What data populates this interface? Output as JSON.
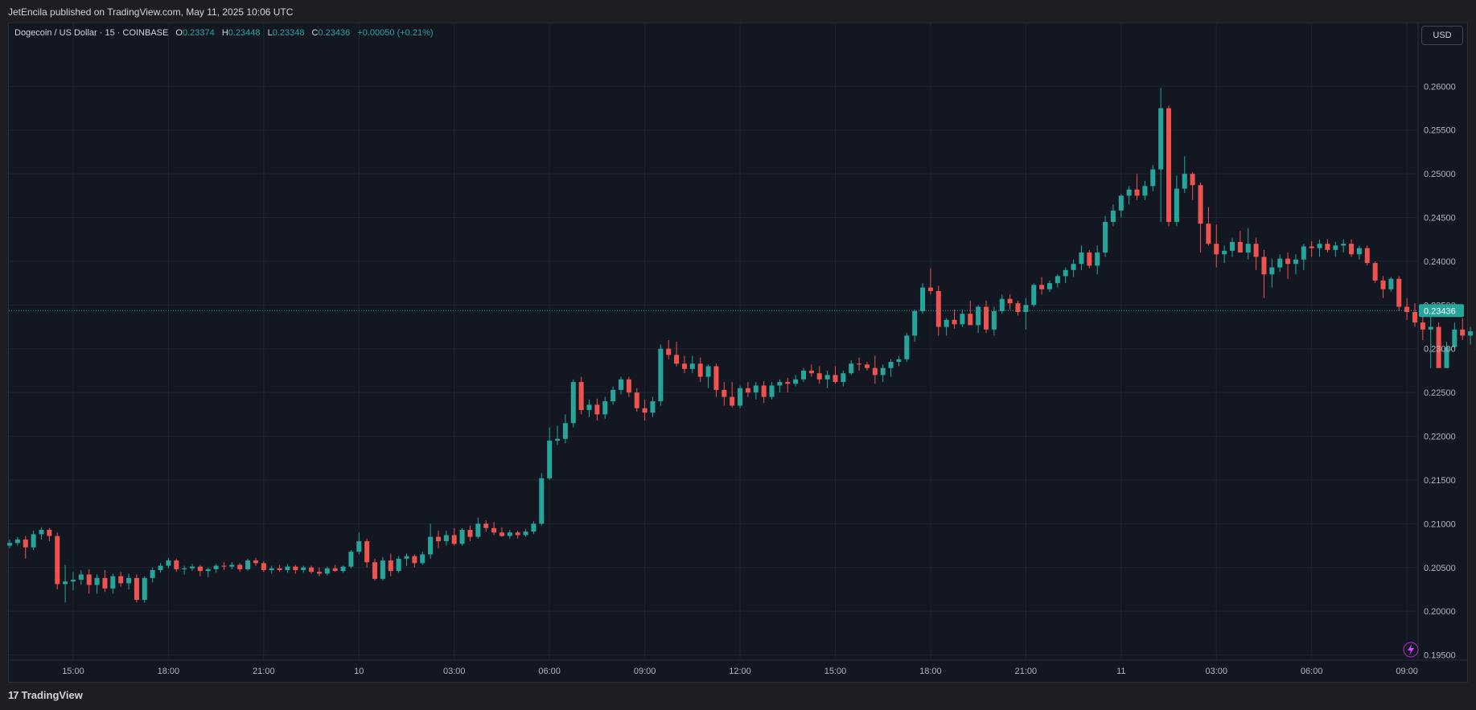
{
  "header": {
    "published": "JetEncila published on TradingView.com, May 11, 2025 10:06 UTC"
  },
  "legend": {
    "symbol": "Dogecoin / US Dollar · 15 · COINBASE",
    "o_label": "O",
    "o_value": "0.23374",
    "h_label": "H",
    "h_value": "0.23448",
    "l_label": "L",
    "l_value": "0.23348",
    "c_label": "C",
    "c_value": "0.23436",
    "change": "+0.00050 (+0.21%)"
  },
  "currency_button": "USD",
  "last_price_label": "0.23436",
  "footer": {
    "logo_mark": "17",
    "logo_text": "TradingView"
  },
  "colors": {
    "up": "#26a69a",
    "down": "#ef5350",
    "background": "#131722",
    "grid": "#1f2430"
  },
  "chart_data": {
    "type": "candlestick",
    "symbol": "Dogecoin / US Dollar",
    "interval": "15",
    "exchange": "COINBASE",
    "y_ticks": [
      "0.19500",
      "0.20000",
      "0.20500",
      "0.21000",
      "0.21500",
      "0.22000",
      "0.22500",
      "0.23000",
      "0.23500",
      "0.24000",
      "0.24500",
      "0.25000",
      "0.25500",
      "0.26000"
    ],
    "ylim": [
      0.1945,
      0.2672
    ],
    "x_ticks": [
      "15:00",
      "18:00",
      "21:00",
      "10",
      "03:00",
      "06:00",
      "09:00",
      "12:00",
      "15:00",
      "18:00",
      "21:00",
      "11",
      "03:00",
      "06:00",
      "09:00"
    ],
    "x_tick_index": [
      8,
      20,
      32,
      44,
      56,
      68,
      80,
      92,
      104,
      116,
      128,
      140,
      152,
      164,
      176
    ],
    "last_price": 0.23436,
    "candles": [
      [
        0.2075,
        0.2082,
        0.2072,
        0.2078
      ],
      [
        0.2078,
        0.2085,
        0.2075,
        0.2082
      ],
      [
        0.2082,
        0.2086,
        0.206,
        0.2073
      ],
      [
        0.2073,
        0.2092,
        0.207,
        0.2088
      ],
      [
        0.2088,
        0.2096,
        0.2082,
        0.2093
      ],
      [
        0.2093,
        0.2095,
        0.208,
        0.2086
      ],
      [
        0.2086,
        0.209,
        0.2025,
        0.2031
      ],
      [
        0.2031,
        0.2053,
        0.201,
        0.2034
      ],
      [
        0.2034,
        0.2045,
        0.2024,
        0.2036
      ],
      [
        0.2036,
        0.2047,
        0.203,
        0.2042
      ],
      [
        0.2042,
        0.2048,
        0.202,
        0.203
      ],
      [
        0.203,
        0.2042,
        0.202,
        0.2038
      ],
      [
        0.2038,
        0.2047,
        0.2022,
        0.2026
      ],
      [
        0.2026,
        0.2043,
        0.202,
        0.204
      ],
      [
        0.204,
        0.2045,
        0.2028,
        0.2032
      ],
      [
        0.2032,
        0.2043,
        0.2025,
        0.2038
      ],
      [
        0.2038,
        0.2042,
        0.201,
        0.2013
      ],
      [
        0.2013,
        0.204,
        0.201,
        0.2038
      ],
      [
        0.2038,
        0.205,
        0.2033,
        0.2047
      ],
      [
        0.2047,
        0.2055,
        0.2044,
        0.2052
      ],
      [
        0.2052,
        0.2061,
        0.2049,
        0.2058
      ],
      [
        0.2058,
        0.206,
        0.2045,
        0.2048
      ],
      [
        0.2048,
        0.2052,
        0.2042,
        0.2049
      ],
      [
        0.2049,
        0.2054,
        0.2046,
        0.2051
      ],
      [
        0.2051,
        0.2053,
        0.204,
        0.2046
      ],
      [
        0.2046,
        0.205,
        0.2039,
        0.2048
      ],
      [
        0.2048,
        0.2054,
        0.2044,
        0.2052
      ],
      [
        0.2052,
        0.2056,
        0.2047,
        0.2051
      ],
      [
        0.2051,
        0.2056,
        0.2048,
        0.2053
      ],
      [
        0.2053,
        0.2055,
        0.2045,
        0.2048
      ],
      [
        0.2048,
        0.206,
        0.2046,
        0.2058
      ],
      [
        0.2058,
        0.2061,
        0.2052,
        0.2055
      ],
      [
        0.2055,
        0.2057,
        0.2045,
        0.2047
      ],
      [
        0.2047,
        0.2052,
        0.2043,
        0.2049
      ],
      [
        0.2049,
        0.2053,
        0.2045,
        0.2047
      ],
      [
        0.2047,
        0.2054,
        0.2044,
        0.2051
      ],
      [
        0.2051,
        0.2053,
        0.2043,
        0.2047
      ],
      [
        0.2047,
        0.2052,
        0.2044,
        0.205
      ],
      [
        0.205,
        0.2052,
        0.2043,
        0.2045
      ],
      [
        0.2045,
        0.205,
        0.204,
        0.2043
      ],
      [
        0.2043,
        0.2051,
        0.2041,
        0.2049
      ],
      [
        0.2049,
        0.2053,
        0.2045,
        0.2046
      ],
      [
        0.2046,
        0.2052,
        0.2044,
        0.2051
      ],
      [
        0.2051,
        0.207,
        0.2049,
        0.2068
      ],
      [
        0.2068,
        0.209,
        0.2065,
        0.208
      ],
      [
        0.208,
        0.2083,
        0.205,
        0.2056
      ],
      [
        0.2056,
        0.206,
        0.2035,
        0.2037
      ],
      [
        0.2037,
        0.2062,
        0.2035,
        0.2058
      ],
      [
        0.2058,
        0.2066,
        0.204,
        0.2046
      ],
      [
        0.2046,
        0.2063,
        0.2044,
        0.206
      ],
      [
        0.206,
        0.2066,
        0.2052,
        0.2063
      ],
      [
        0.2063,
        0.2065,
        0.205,
        0.2055
      ],
      [
        0.2055,
        0.2068,
        0.2053,
        0.2065
      ],
      [
        0.2065,
        0.21,
        0.206,
        0.2085
      ],
      [
        0.2085,
        0.2092,
        0.2072,
        0.208
      ],
      [
        0.208,
        0.2092,
        0.2075,
        0.2087
      ],
      [
        0.2087,
        0.2095,
        0.2075,
        0.2077
      ],
      [
        0.2077,
        0.2095,
        0.2075,
        0.2093
      ],
      [
        0.2093,
        0.2098,
        0.208,
        0.2085
      ],
      [
        0.2085,
        0.2107,
        0.2083,
        0.21
      ],
      [
        0.21,
        0.2104,
        0.2091,
        0.2095
      ],
      [
        0.2095,
        0.2102,
        0.2087,
        0.209
      ],
      [
        0.209,
        0.2096,
        0.2085,
        0.2086
      ],
      [
        0.2086,
        0.2093,
        0.2083,
        0.209
      ],
      [
        0.209,
        0.2092,
        0.2083,
        0.2087
      ],
      [
        0.2087,
        0.2094,
        0.2085,
        0.2091
      ],
      [
        0.2091,
        0.2103,
        0.2088,
        0.21
      ],
      [
        0.21,
        0.2158,
        0.2098,
        0.2152
      ],
      [
        0.2152,
        0.221,
        0.215,
        0.2195
      ],
      [
        0.2195,
        0.2212,
        0.219,
        0.2197
      ],
      [
        0.2197,
        0.2225,
        0.2192,
        0.2215
      ],
      [
        0.2215,
        0.2265,
        0.221,
        0.2262
      ],
      [
        0.2262,
        0.2268,
        0.2225,
        0.223
      ],
      [
        0.223,
        0.2242,
        0.2222,
        0.2236
      ],
      [
        0.2236,
        0.2243,
        0.2218,
        0.2225
      ],
      [
        0.2225,
        0.2245,
        0.222,
        0.224
      ],
      [
        0.224,
        0.2257,
        0.2236,
        0.2253
      ],
      [
        0.2253,
        0.2268,
        0.2248,
        0.2265
      ],
      [
        0.2265,
        0.2268,
        0.2245,
        0.225
      ],
      [
        0.225,
        0.2255,
        0.2228,
        0.2232
      ],
      [
        0.2232,
        0.2242,
        0.2218,
        0.2227
      ],
      [
        0.2227,
        0.2245,
        0.2222,
        0.224
      ],
      [
        0.224,
        0.2305,
        0.2235,
        0.23
      ],
      [
        0.23,
        0.231,
        0.2288,
        0.2293
      ],
      [
        0.2293,
        0.2308,
        0.228,
        0.2283
      ],
      [
        0.2283,
        0.2292,
        0.2272,
        0.2277
      ],
      [
        0.2277,
        0.2292,
        0.2272,
        0.2283
      ],
      [
        0.2283,
        0.229,
        0.2262,
        0.2268
      ],
      [
        0.2268,
        0.2282,
        0.2255,
        0.228
      ],
      [
        0.228,
        0.2283,
        0.2245,
        0.2253
      ],
      [
        0.2253,
        0.2262,
        0.2235,
        0.2245
      ],
      [
        0.2245,
        0.2262,
        0.2233,
        0.2235
      ],
      [
        0.2235,
        0.2258,
        0.2232,
        0.2255
      ],
      [
        0.2255,
        0.2262,
        0.2245,
        0.225
      ],
      [
        0.225,
        0.2262,
        0.2242,
        0.2258
      ],
      [
        0.2258,
        0.2263,
        0.2238,
        0.2245
      ],
      [
        0.2245,
        0.2262,
        0.2242,
        0.2258
      ],
      [
        0.2258,
        0.2265,
        0.225,
        0.2262
      ],
      [
        0.2262,
        0.2267,
        0.225,
        0.226
      ],
      [
        0.226,
        0.227,
        0.2257,
        0.2265
      ],
      [
        0.2265,
        0.2278,
        0.2262,
        0.2275
      ],
      [
        0.2275,
        0.2282,
        0.2268,
        0.2272
      ],
      [
        0.2272,
        0.228,
        0.226,
        0.2265
      ],
      [
        0.2265,
        0.2275,
        0.2255,
        0.227
      ],
      [
        0.227,
        0.228,
        0.226,
        0.2262
      ],
      [
        0.2262,
        0.2275,
        0.2257,
        0.2272
      ],
      [
        0.2272,
        0.2287,
        0.227,
        0.2283
      ],
      [
        0.2283,
        0.229,
        0.2275,
        0.2282
      ],
      [
        0.2282,
        0.2285,
        0.2275,
        0.2278
      ],
      [
        0.2278,
        0.2292,
        0.226,
        0.227
      ],
      [
        0.227,
        0.2282,
        0.2262,
        0.2278
      ],
      [
        0.2278,
        0.2288,
        0.2268,
        0.2285
      ],
      [
        0.2285,
        0.2292,
        0.228,
        0.2288
      ],
      [
        0.2288,
        0.2318,
        0.2285,
        0.2315
      ],
      [
        0.2315,
        0.2345,
        0.2308,
        0.2343
      ],
      [
        0.2343,
        0.2375,
        0.234,
        0.237
      ],
      [
        0.237,
        0.2392,
        0.2362,
        0.2366
      ],
      [
        0.2366,
        0.2372,
        0.2315,
        0.2325
      ],
      [
        0.2325,
        0.2335,
        0.2315,
        0.2333
      ],
      [
        0.2333,
        0.2345,
        0.2323,
        0.2328
      ],
      [
        0.2328,
        0.2345,
        0.2325,
        0.234
      ],
      [
        0.234,
        0.2355,
        0.233,
        0.2327
      ],
      [
        0.2327,
        0.235,
        0.2318,
        0.2348
      ],
      [
        0.2348,
        0.2355,
        0.2318,
        0.2322
      ],
      [
        0.2322,
        0.2348,
        0.2315,
        0.2343
      ],
      [
        0.2343,
        0.2362,
        0.234,
        0.2357
      ],
      [
        0.2357,
        0.2362,
        0.2345,
        0.2352
      ],
      [
        0.2352,
        0.2355,
        0.2338,
        0.2342
      ],
      [
        0.2342,
        0.2358,
        0.2322,
        0.235
      ],
      [
        0.235,
        0.2375,
        0.2348,
        0.2373
      ],
      [
        0.2373,
        0.2382,
        0.2362,
        0.2368
      ],
      [
        0.2368,
        0.2378,
        0.2365,
        0.2375
      ],
      [
        0.2375,
        0.2385,
        0.237,
        0.2383
      ],
      [
        0.2383,
        0.2393,
        0.2375,
        0.239
      ],
      [
        0.239,
        0.2402,
        0.2382,
        0.2397
      ],
      [
        0.2397,
        0.2418,
        0.239,
        0.241
      ],
      [
        0.241,
        0.2413,
        0.2392,
        0.2395
      ],
      [
        0.2395,
        0.2418,
        0.2385,
        0.241
      ],
      [
        0.241,
        0.2452,
        0.2405,
        0.2445
      ],
      [
        0.2445,
        0.2465,
        0.244,
        0.2458
      ],
      [
        0.2458,
        0.2477,
        0.245,
        0.2475
      ],
      [
        0.2475,
        0.2486,
        0.2465,
        0.2482
      ],
      [
        0.2482,
        0.25,
        0.247,
        0.2475
      ],
      [
        0.2475,
        0.2492,
        0.247,
        0.2486
      ],
      [
        0.2486,
        0.251,
        0.248,
        0.2505
      ],
      [
        0.2505,
        0.2598,
        0.2445,
        0.2575
      ],
      [
        0.2575,
        0.2578,
        0.244,
        0.2445
      ],
      [
        0.2445,
        0.2498,
        0.244,
        0.2483
      ],
      [
        0.2483,
        0.252,
        0.2478,
        0.25
      ],
      [
        0.25,
        0.2502,
        0.247,
        0.2487
      ],
      [
        0.2487,
        0.249,
        0.241,
        0.2443
      ],
      [
        0.2443,
        0.2462,
        0.2418,
        0.242
      ],
      [
        0.242,
        0.2442,
        0.2393,
        0.2408
      ],
      [
        0.2408,
        0.2418,
        0.2398,
        0.2412
      ],
      [
        0.2412,
        0.2427,
        0.2405,
        0.2422
      ],
      [
        0.2422,
        0.2435,
        0.2415,
        0.241
      ],
      [
        0.241,
        0.2438,
        0.2402,
        0.242
      ],
      [
        0.242,
        0.2427,
        0.239,
        0.2405
      ],
      [
        0.2405,
        0.2413,
        0.2358,
        0.2385
      ],
      [
        0.2385,
        0.2403,
        0.237,
        0.2393
      ],
      [
        0.2393,
        0.2408,
        0.2388,
        0.2403
      ],
      [
        0.2403,
        0.241,
        0.238,
        0.2397
      ],
      [
        0.2397,
        0.2408,
        0.2385,
        0.2402
      ],
      [
        0.2402,
        0.242,
        0.239,
        0.2417
      ],
      [
        0.2417,
        0.2423,
        0.2405,
        0.2415
      ],
      [
        0.2415,
        0.2425,
        0.2405,
        0.242
      ],
      [
        0.242,
        0.2425,
        0.241,
        0.2413
      ],
      [
        0.2413,
        0.2422,
        0.2405,
        0.2418
      ],
      [
        0.2418,
        0.2425,
        0.241,
        0.242
      ],
      [
        0.242,
        0.2425,
        0.2405,
        0.2408
      ],
      [
        0.2408,
        0.2418,
        0.2402,
        0.2415
      ],
      [
        0.2415,
        0.2418,
        0.2395,
        0.2398
      ],
      [
        0.2398,
        0.24,
        0.2375,
        0.2378
      ],
      [
        0.2378,
        0.2383,
        0.2358,
        0.2368
      ],
      [
        0.2368,
        0.2382,
        0.2365,
        0.238
      ],
      [
        0.238,
        0.2383,
        0.2343,
        0.2348
      ],
      [
        0.2348,
        0.2358,
        0.2333,
        0.2342
      ],
      [
        0.2342,
        0.2352,
        0.2325,
        0.233
      ],
      [
        0.233,
        0.234,
        0.231,
        0.2322
      ],
      [
        0.2322,
        0.2342,
        0.2278,
        0.2325
      ],
      [
        0.2325,
        0.233,
        0.2278,
        0.2278
      ],
      [
        0.2278,
        0.2308,
        0.2278,
        0.2302
      ],
      [
        0.2302,
        0.233,
        0.23,
        0.2322
      ],
      [
        0.2322,
        0.2335,
        0.231,
        0.2315
      ],
      [
        0.2315,
        0.2325,
        0.2305,
        0.232
      ],
      [
        0.232,
        0.2322,
        0.2295,
        0.2298
      ],
      [
        0.2298,
        0.2335,
        0.2296,
        0.233
      ],
      [
        0.233,
        0.2345,
        0.2325,
        0.2343
      ],
      [
        0.2343,
        0.2348,
        0.2335,
        0.2337
      ],
      [
        0.2337,
        0.2345,
        0.2332,
        0.234
      ],
      [
        0.234,
        0.235,
        0.2335,
        0.2346
      ],
      [
        0.2346,
        0.235,
        0.2338,
        0.2344
      ],
      [
        0.2337,
        0.2345,
        0.2335,
        0.2344
      ]
    ]
  }
}
